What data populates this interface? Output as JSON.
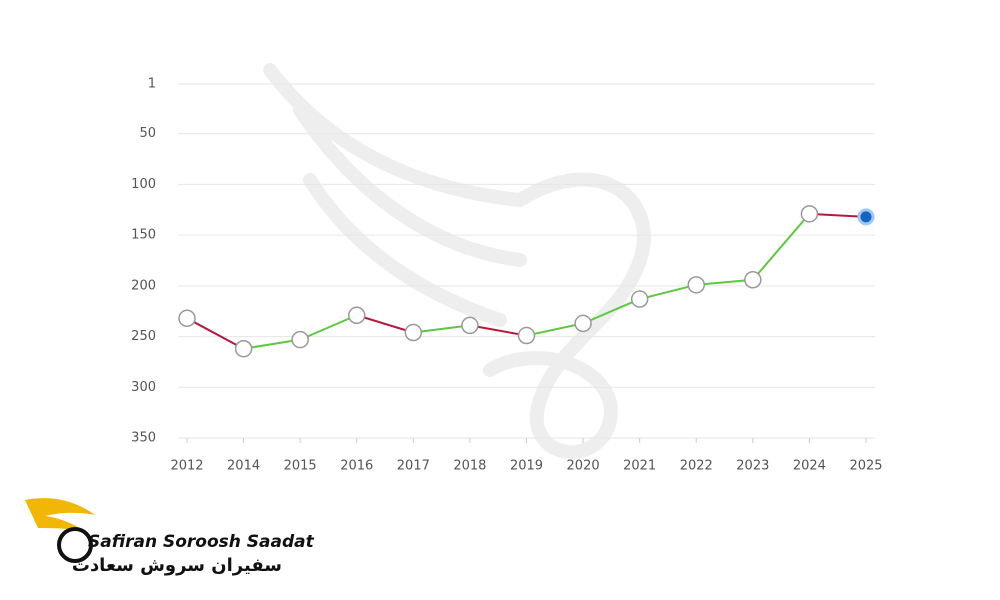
{
  "chart_data": {
    "type": "line",
    "categories": [
      "2012",
      "2014",
      "2015",
      "2016",
      "2017",
      "2018",
      "2019",
      "2020",
      "2021",
      "2022",
      "2023",
      "2024",
      "2025"
    ],
    "series": [
      {
        "values": [
          232,
          262,
          253,
          229,
          246,
          239,
          249,
          237,
          213,
          199,
          194,
          129,
          132
        ],
        "color": "#5cc93f"
      }
    ],
    "worse_color": "#b5193a",
    "last_point_color": "#1565c0",
    "ylim": [
      1,
      350
    ],
    "y_reversed": true,
    "yticks": [
      1,
      50,
      100,
      150,
      200,
      250,
      300,
      350
    ],
    "grid": true
  },
  "logo": {
    "name": "Safiran Soroosh Saadat",
    "name_fa": "سفیران سروش سعادت"
  }
}
